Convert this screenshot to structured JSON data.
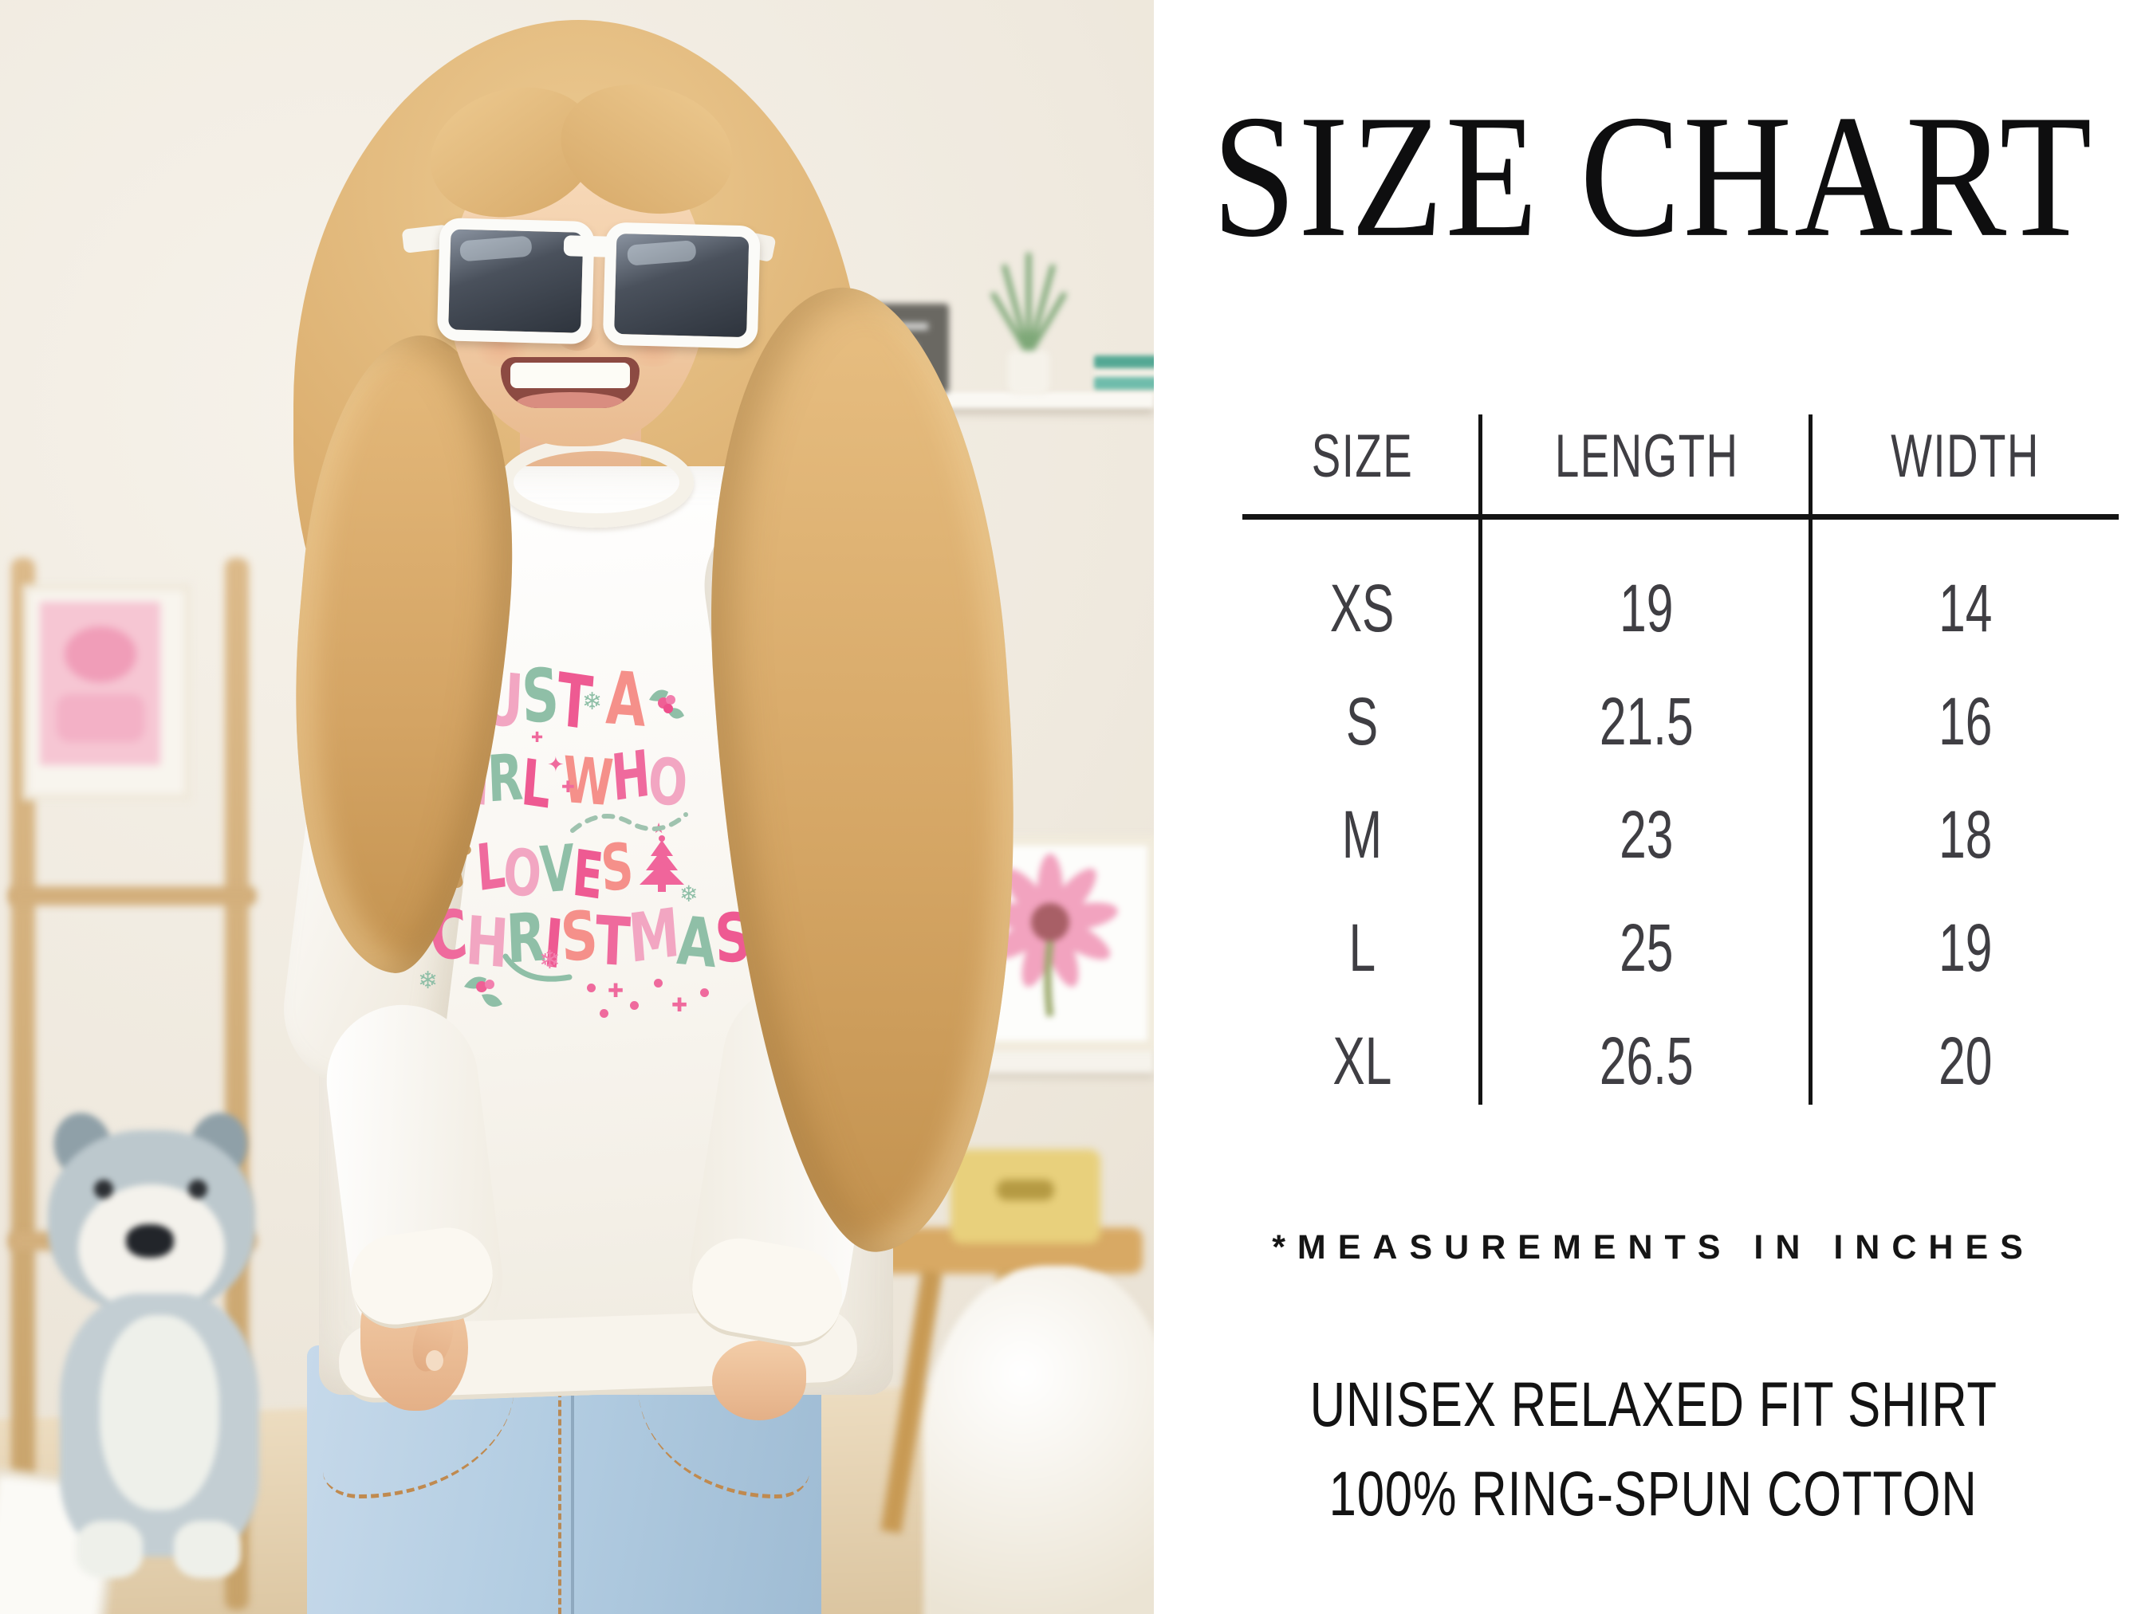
{
  "size_chart": {
    "title": "SIZE CHART",
    "columns": [
      "SIZE",
      "LENGTH",
      "WIDTH"
    ],
    "rows": [
      {
        "size": "XS",
        "length": "19",
        "width": "14"
      },
      {
        "size": "S",
        "length": "21.5",
        "width": "16"
      },
      {
        "size": "M",
        "length": "23",
        "width": "18"
      },
      {
        "size": "L",
        "length": "25",
        "width": "19"
      },
      {
        "size": "XL",
        "length": "26.5",
        "width": "20"
      }
    ],
    "note": "*MEASUREMENTS IN INCHES",
    "details": [
      "UNISEX RELAXED FIT SHIRT",
      "100% RING-SPUN COTTON"
    ],
    "text_color": "#0e0e0f",
    "table_text_color": "#3f3e43"
  },
  "chart_data": {
    "type": "table",
    "title": "SIZE CHART",
    "columns": [
      "SIZE",
      "LENGTH",
      "WIDTH"
    ],
    "rows": [
      [
        "XS",
        "19",
        "14"
      ],
      [
        "S",
        "21.5",
        "16"
      ],
      [
        "M",
        "23",
        "18"
      ],
      [
        "L",
        "25",
        "19"
      ],
      [
        "XL",
        "26.5",
        "20"
      ]
    ],
    "note": "*MEASUREMENTS IN INCHES"
  },
  "photo": {
    "shirt_design": {
      "lines": [
        "JUST A",
        "GIRL WHO",
        "LOVES",
        "CHRISTMAS"
      ],
      "palette": [
        "#ef6a9d",
        "#f2a6c2",
        "#8fbfa7",
        "#ee5a92",
        "#f5908a"
      ],
      "accent_green": "#8fbfa7",
      "accent_pink": "#f06a9e",
      "gingerbread_brown": "#c89b5e"
    }
  },
  "icons": {
    "snowflake": "❄",
    "sparkle": "✦",
    "plus_sparkle": "✚",
    "star": "★"
  }
}
